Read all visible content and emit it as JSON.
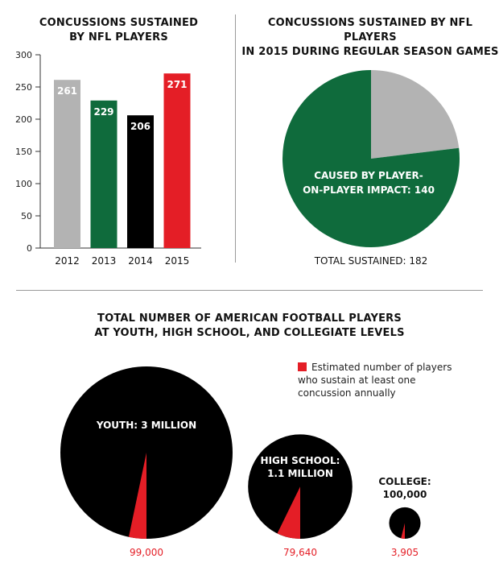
{
  "colors": {
    "gray": "#b3b3b3",
    "green": "#0f6b3c",
    "black": "#000000",
    "red": "#e41e26",
    "axis": "#333333",
    "divider": "#9a9a9a"
  },
  "chart_data": [
    {
      "type": "bar",
      "title_lines": [
        "CONCUSSIONS SUSTAINED",
        "BY NFL PLAYERS"
      ],
      "categories": [
        "2012",
        "2013",
        "2014",
        "2015"
      ],
      "values": [
        261,
        229,
        206,
        271
      ],
      "bar_colors": [
        "#b3b3b3",
        "#0f6b3c",
        "#000000",
        "#e41e26"
      ],
      "data_labels": [
        "261",
        "229",
        "206",
        "271"
      ],
      "ylim": [
        0,
        300
      ],
      "yticks": [
        "0",
        "50",
        "100",
        "150",
        "200",
        "250",
        "300"
      ],
      "grid": false
    },
    {
      "type": "pie",
      "title_lines": [
        "CONCUSSIONS SUSTAINED BY NFL PLAYERS",
        "IN 2015 DURING REGULAR SEASON GAMES"
      ],
      "total": 182,
      "slices": [
        {
          "value": 140,
          "color": "#0f6b3c",
          "label_lines": [
            "CAUSED BY PLAYER-",
            "ON-PLAYER IMPACT: 140"
          ]
        },
        {
          "value": 42,
          "color": "#b3b3b3",
          "label_lines": []
        }
      ],
      "total_label": "TOTAL SUSTAINED: 182"
    },
    {
      "type": "bubble",
      "title_lines": [
        "TOTAL NUMBER OF AMERICAN FOOTBALL PLAYERS",
        "AT YOUTH, HIGH SCHOOL, AND COLLEGIATE LEVELS"
      ],
      "legend_text": "Estimated number of players who sustain at least one concussion annually",
      "groups": [
        {
          "label_lines": [
            "YOUTH: 3 MILLION"
          ],
          "total": 3000000,
          "concussions": 99000,
          "concussion_label": "99,000"
        },
        {
          "label_lines": [
            "HIGH SCHOOL:",
            "1.1 MILLION"
          ],
          "total": 1100000,
          "concussions": 79640,
          "concussion_label": "79,640"
        },
        {
          "label_lines": [
            "COLLEGE:",
            "100,000"
          ],
          "total": 100000,
          "concussions": 3905,
          "concussion_label": "3,905"
        }
      ]
    }
  ]
}
